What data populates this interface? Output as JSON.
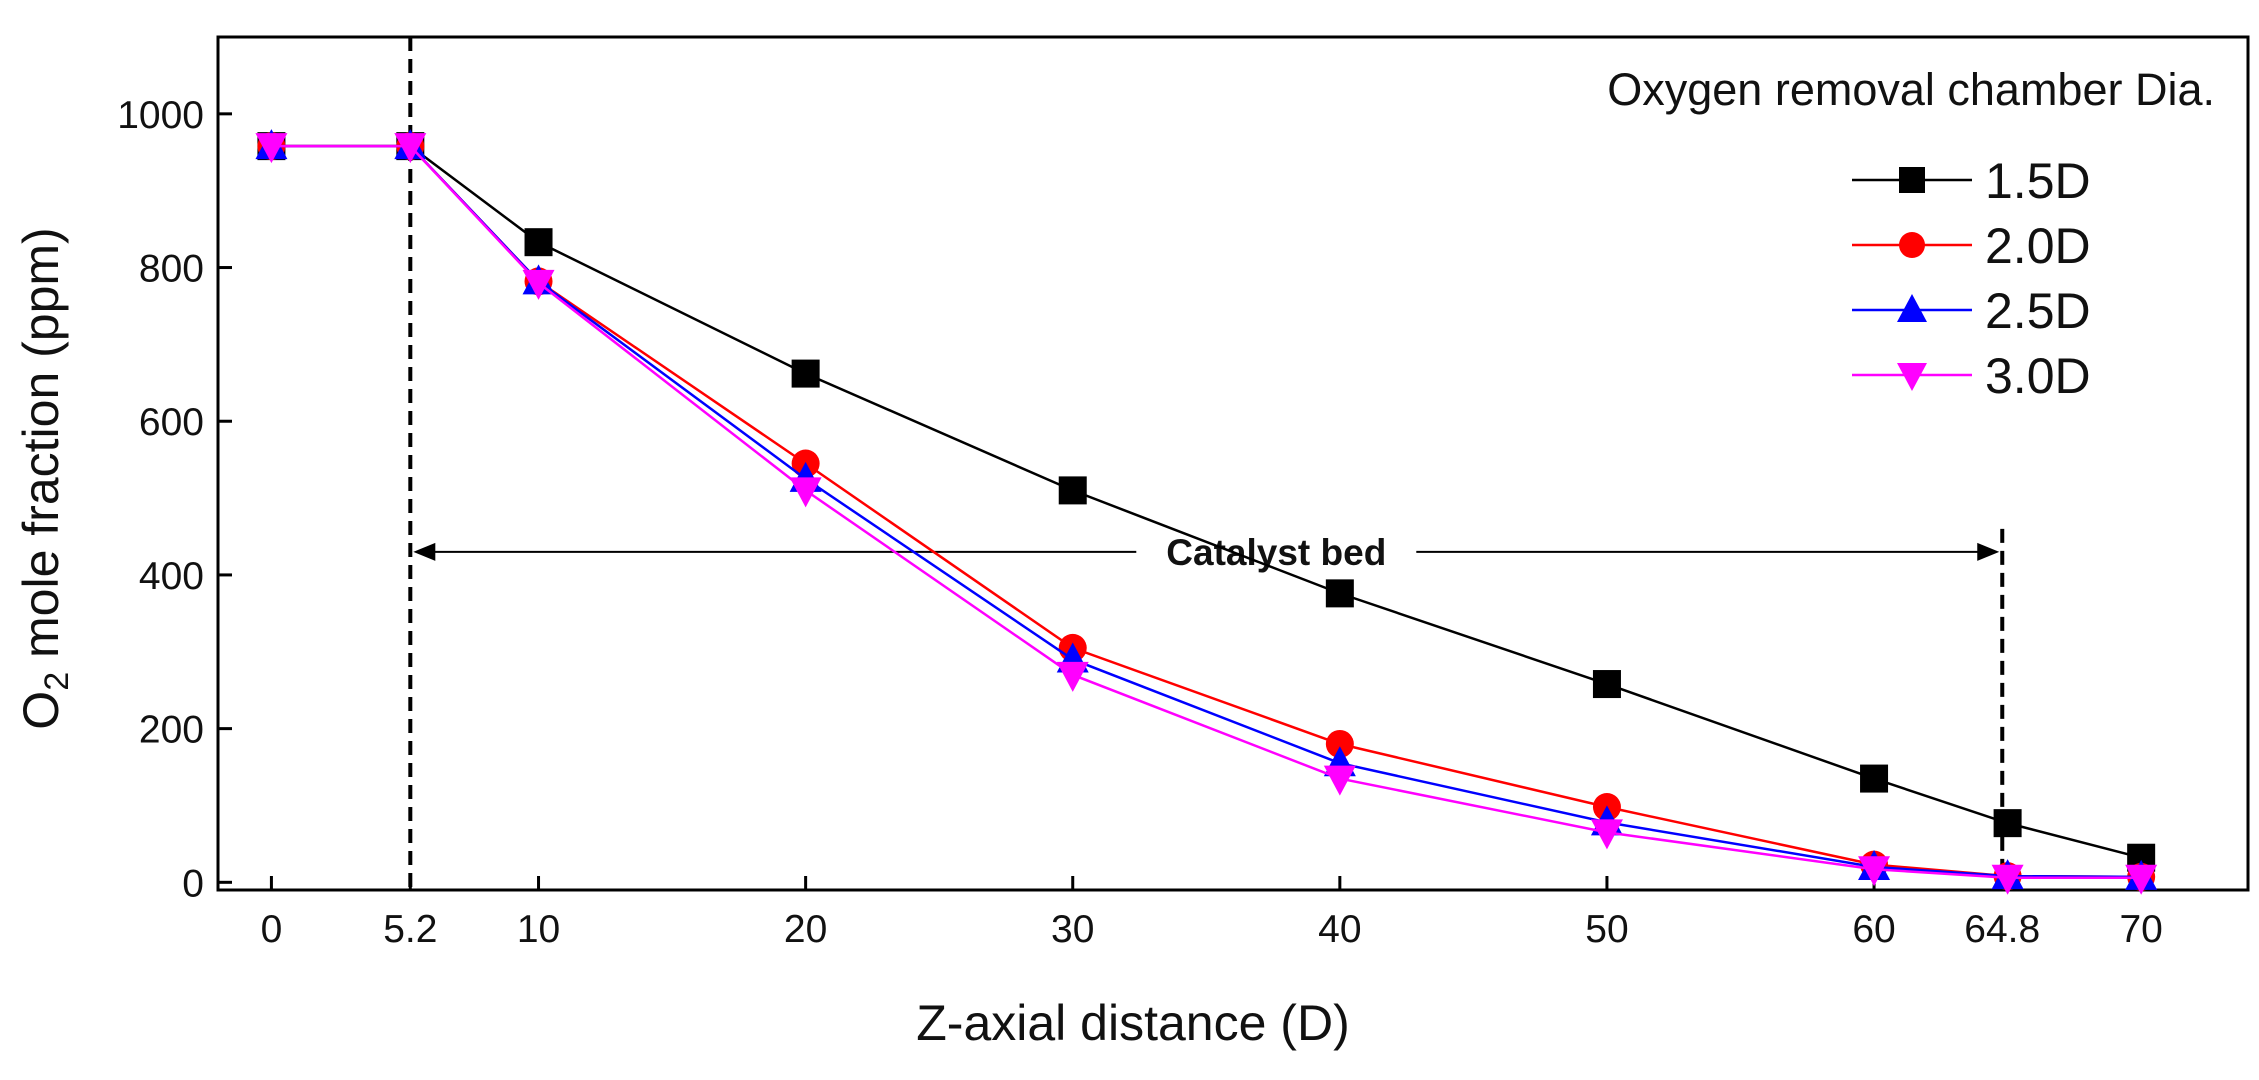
{
  "chart_data": {
    "type": "line",
    "title": "",
    "xlabel": "Z-axial distance (D)",
    "ylabel": {
      "prefix": "O",
      "subscript": "2",
      "suffix": " mole fraction (ppm)"
    },
    "xlim": [
      -2,
      74
    ],
    "ylim": [
      -10,
      1100
    ],
    "x_ticks": [
      0,
      5.2,
      10,
      20,
      30,
      40,
      50,
      60,
      64.8,
      70
    ],
    "x_tick_labels": [
      "0",
      "5.2",
      "10",
      "20",
      "30",
      "40",
      "50",
      "60",
      "64.8",
      "70"
    ],
    "y_ticks": [
      0,
      200,
      400,
      600,
      800,
      1000
    ],
    "y_tick_labels": [
      "0",
      "200",
      "400",
      "600",
      "800",
      "1000"
    ],
    "x": [
      0,
      5.2,
      10,
      20,
      30,
      40,
      50,
      60,
      65,
      70
    ],
    "series": [
      {
        "name": "1.5D",
        "color": "#000000",
        "marker": "square",
        "values": [
          958,
          958,
          833,
          662,
          510,
          376,
          258,
          135,
          77,
          32
        ]
      },
      {
        "name": "2.0D",
        "color": "#ff0000",
        "marker": "circle",
        "values": [
          958,
          958,
          782,
          545,
          305,
          180,
          98,
          23,
          8,
          7
        ]
      },
      {
        "name": "2.5D",
        "color": "#0000ff",
        "marker": "triangle-up",
        "values": [
          958,
          958,
          782,
          525,
          290,
          155,
          78,
          20,
          8,
          7
        ]
      },
      {
        "name": "3.0D",
        "color": "#ff00ff",
        "marker": "triangle-down",
        "values": [
          958,
          958,
          780,
          510,
          270,
          135,
          65,
          17,
          6,
          6
        ]
      }
    ],
    "legend": {
      "title": "Oxygen removal chamber Dia.",
      "placement": "top-right"
    },
    "reference_lines": [
      {
        "x": 5.2,
        "style": "dashed"
      },
      {
        "x": 64.8,
        "style": "dashed"
      }
    ],
    "annotations": [
      {
        "text": "Catalyst bed",
        "from_x": 5.2,
        "to_x": 64.8,
        "y": 430
      }
    ]
  }
}
